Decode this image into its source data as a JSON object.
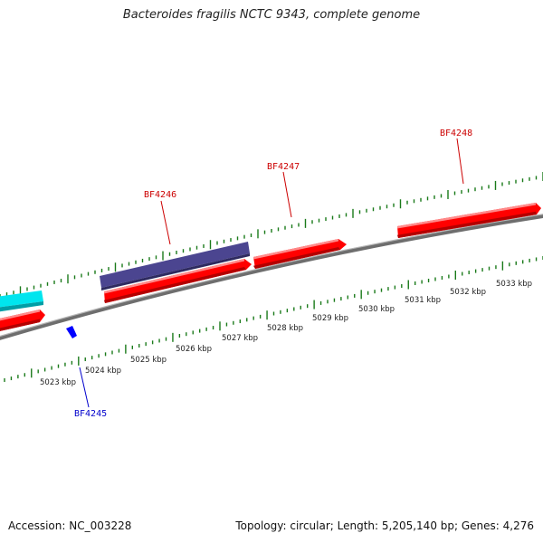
{
  "title": "Bacteroides fragilis NCTC 9343, complete genome",
  "accession": "Accession: NC_003228",
  "summary": "Topology: circular; Length: 5,205,140 bp; Genes: 4,276",
  "scale_labels": [
    "5023 kbp",
    "5024 kbp",
    "5025 kbp",
    "5026 kbp",
    "5027 kbp",
    "5028 kbp",
    "5029 kbp",
    "5030 kbp",
    "5031 kbp",
    "5032 kbp",
    "5033 kbp"
  ],
  "gene_labels": [
    {
      "text": "BF4245",
      "color": "#0000cc"
    },
    {
      "text": "BF4246",
      "color": "#cc0000"
    },
    {
      "text": "BF4247",
      "color": "#cc0000"
    },
    {
      "text": "BF4248",
      "color": "#cc0000"
    }
  ],
  "colors": {
    "cds_forward": "#ff0000",
    "cds_reverse": "#0000ff",
    "other_feature": "#00e5ee",
    "gene_block": "#4b4590",
    "backbone": "#808080",
    "ticks": "#1a7a1a"
  }
}
